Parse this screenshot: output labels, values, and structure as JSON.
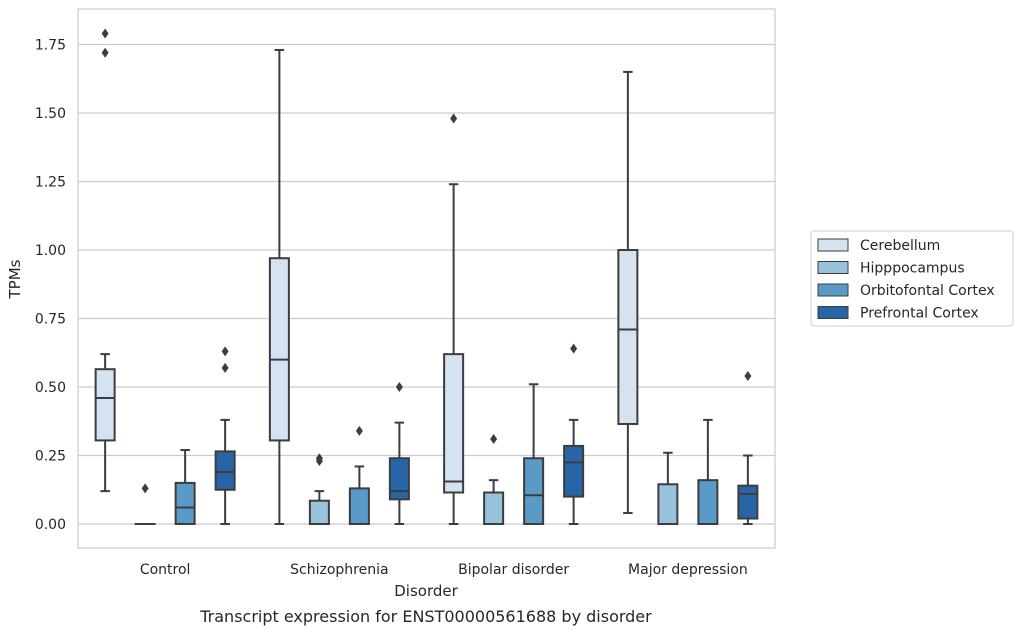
{
  "chart_data": {
    "type": "box",
    "caption": "Transcript expression for ENST00000561688 by disorder",
    "xlabel": "Disorder",
    "ylabel": "TPMs",
    "ylim": [
      -0.085,
      1.89
    ],
    "yticks": [
      "0.00",
      "0.25",
      "0.50",
      "0.75",
      "1.00",
      "1.25",
      "1.50",
      "1.75"
    ],
    "grid": true,
    "legend_position": "right",
    "categories": [
      "Control",
      "Schizophrenia",
      "Bipolar disorder",
      "Major depression"
    ],
    "series": [
      {
        "name": "Cerebellum",
        "color": "#d5e2f2",
        "boxes": [
          {
            "whisker_low": 0.12,
            "q1": 0.305,
            "median": 0.46,
            "q3": 0.565,
            "whisker_high": 0.62,
            "outliers": [
              1.72,
              1.79
            ]
          },
          {
            "whisker_low": 0.0,
            "q1": 0.305,
            "median": 0.6,
            "q3": 0.97,
            "whisker_high": 1.73,
            "outliers": []
          },
          {
            "whisker_low": 0.0,
            "q1": 0.115,
            "median": 0.155,
            "q3": 0.62,
            "whisker_high": 1.24,
            "outliers": [
              1.48
            ]
          },
          {
            "whisker_low": 0.04,
            "q1": 0.365,
            "median": 0.71,
            "q3": 1.0,
            "whisker_high": 1.65,
            "outliers": []
          }
        ]
      },
      {
        "name": "Hipppocampus",
        "color": "#99c3dd",
        "boxes": [
          {
            "whisker_low": 0.0,
            "q1": 0.0,
            "median": 0.0,
            "q3": 0.0,
            "whisker_high": 0.0,
            "outliers": [
              0.13
            ]
          },
          {
            "whisker_low": 0.0,
            "q1": 0.0,
            "median": 0.0,
            "q3": 0.085,
            "whisker_high": 0.12,
            "outliers": [
              0.23,
              0.24
            ]
          },
          {
            "whisker_low": 0.0,
            "q1": 0.0,
            "median": 0.0,
            "q3": 0.115,
            "whisker_high": 0.16,
            "outliers": [
              0.31
            ]
          },
          {
            "whisker_low": 0.0,
            "q1": 0.0,
            "median": 0.0,
            "q3": 0.145,
            "whisker_high": 0.26,
            "outliers": []
          }
        ]
      },
      {
        "name": "Orbitofontal Cortex",
        "color": "#5a9ac6",
        "boxes": [
          {
            "whisker_low": 0.0,
            "q1": 0.0,
            "median": 0.06,
            "q3": 0.15,
            "whisker_high": 0.27,
            "outliers": []
          },
          {
            "whisker_low": 0.0,
            "q1": 0.0,
            "median": 0.0,
            "q3": 0.13,
            "whisker_high": 0.21,
            "outliers": [
              0.34
            ]
          },
          {
            "whisker_low": 0.0,
            "q1": 0.0,
            "median": 0.105,
            "q3": 0.24,
            "whisker_high": 0.51,
            "outliers": []
          },
          {
            "whisker_low": 0.0,
            "q1": 0.0,
            "median": 0.0,
            "q3": 0.16,
            "whisker_high": 0.38,
            "outliers": []
          }
        ]
      },
      {
        "name": "Prefrontal Cortex",
        "color": "#2865a6",
        "boxes": [
          {
            "whisker_low": 0.0,
            "q1": 0.125,
            "median": 0.19,
            "q3": 0.265,
            "whisker_high": 0.38,
            "outliers": [
              0.57,
              0.63
            ]
          },
          {
            "whisker_low": 0.0,
            "q1": 0.09,
            "median": 0.12,
            "q3": 0.24,
            "whisker_high": 0.37,
            "outliers": [
              0.5
            ]
          },
          {
            "whisker_low": 0.0,
            "q1": 0.1,
            "median": 0.225,
            "q3": 0.285,
            "whisker_high": 0.38,
            "outliers": [
              0.64
            ]
          },
          {
            "whisker_low": 0.0,
            "q1": 0.02,
            "median": 0.11,
            "q3": 0.14,
            "whisker_high": 0.25,
            "outliers": [
              0.54
            ]
          }
        ]
      }
    ]
  }
}
